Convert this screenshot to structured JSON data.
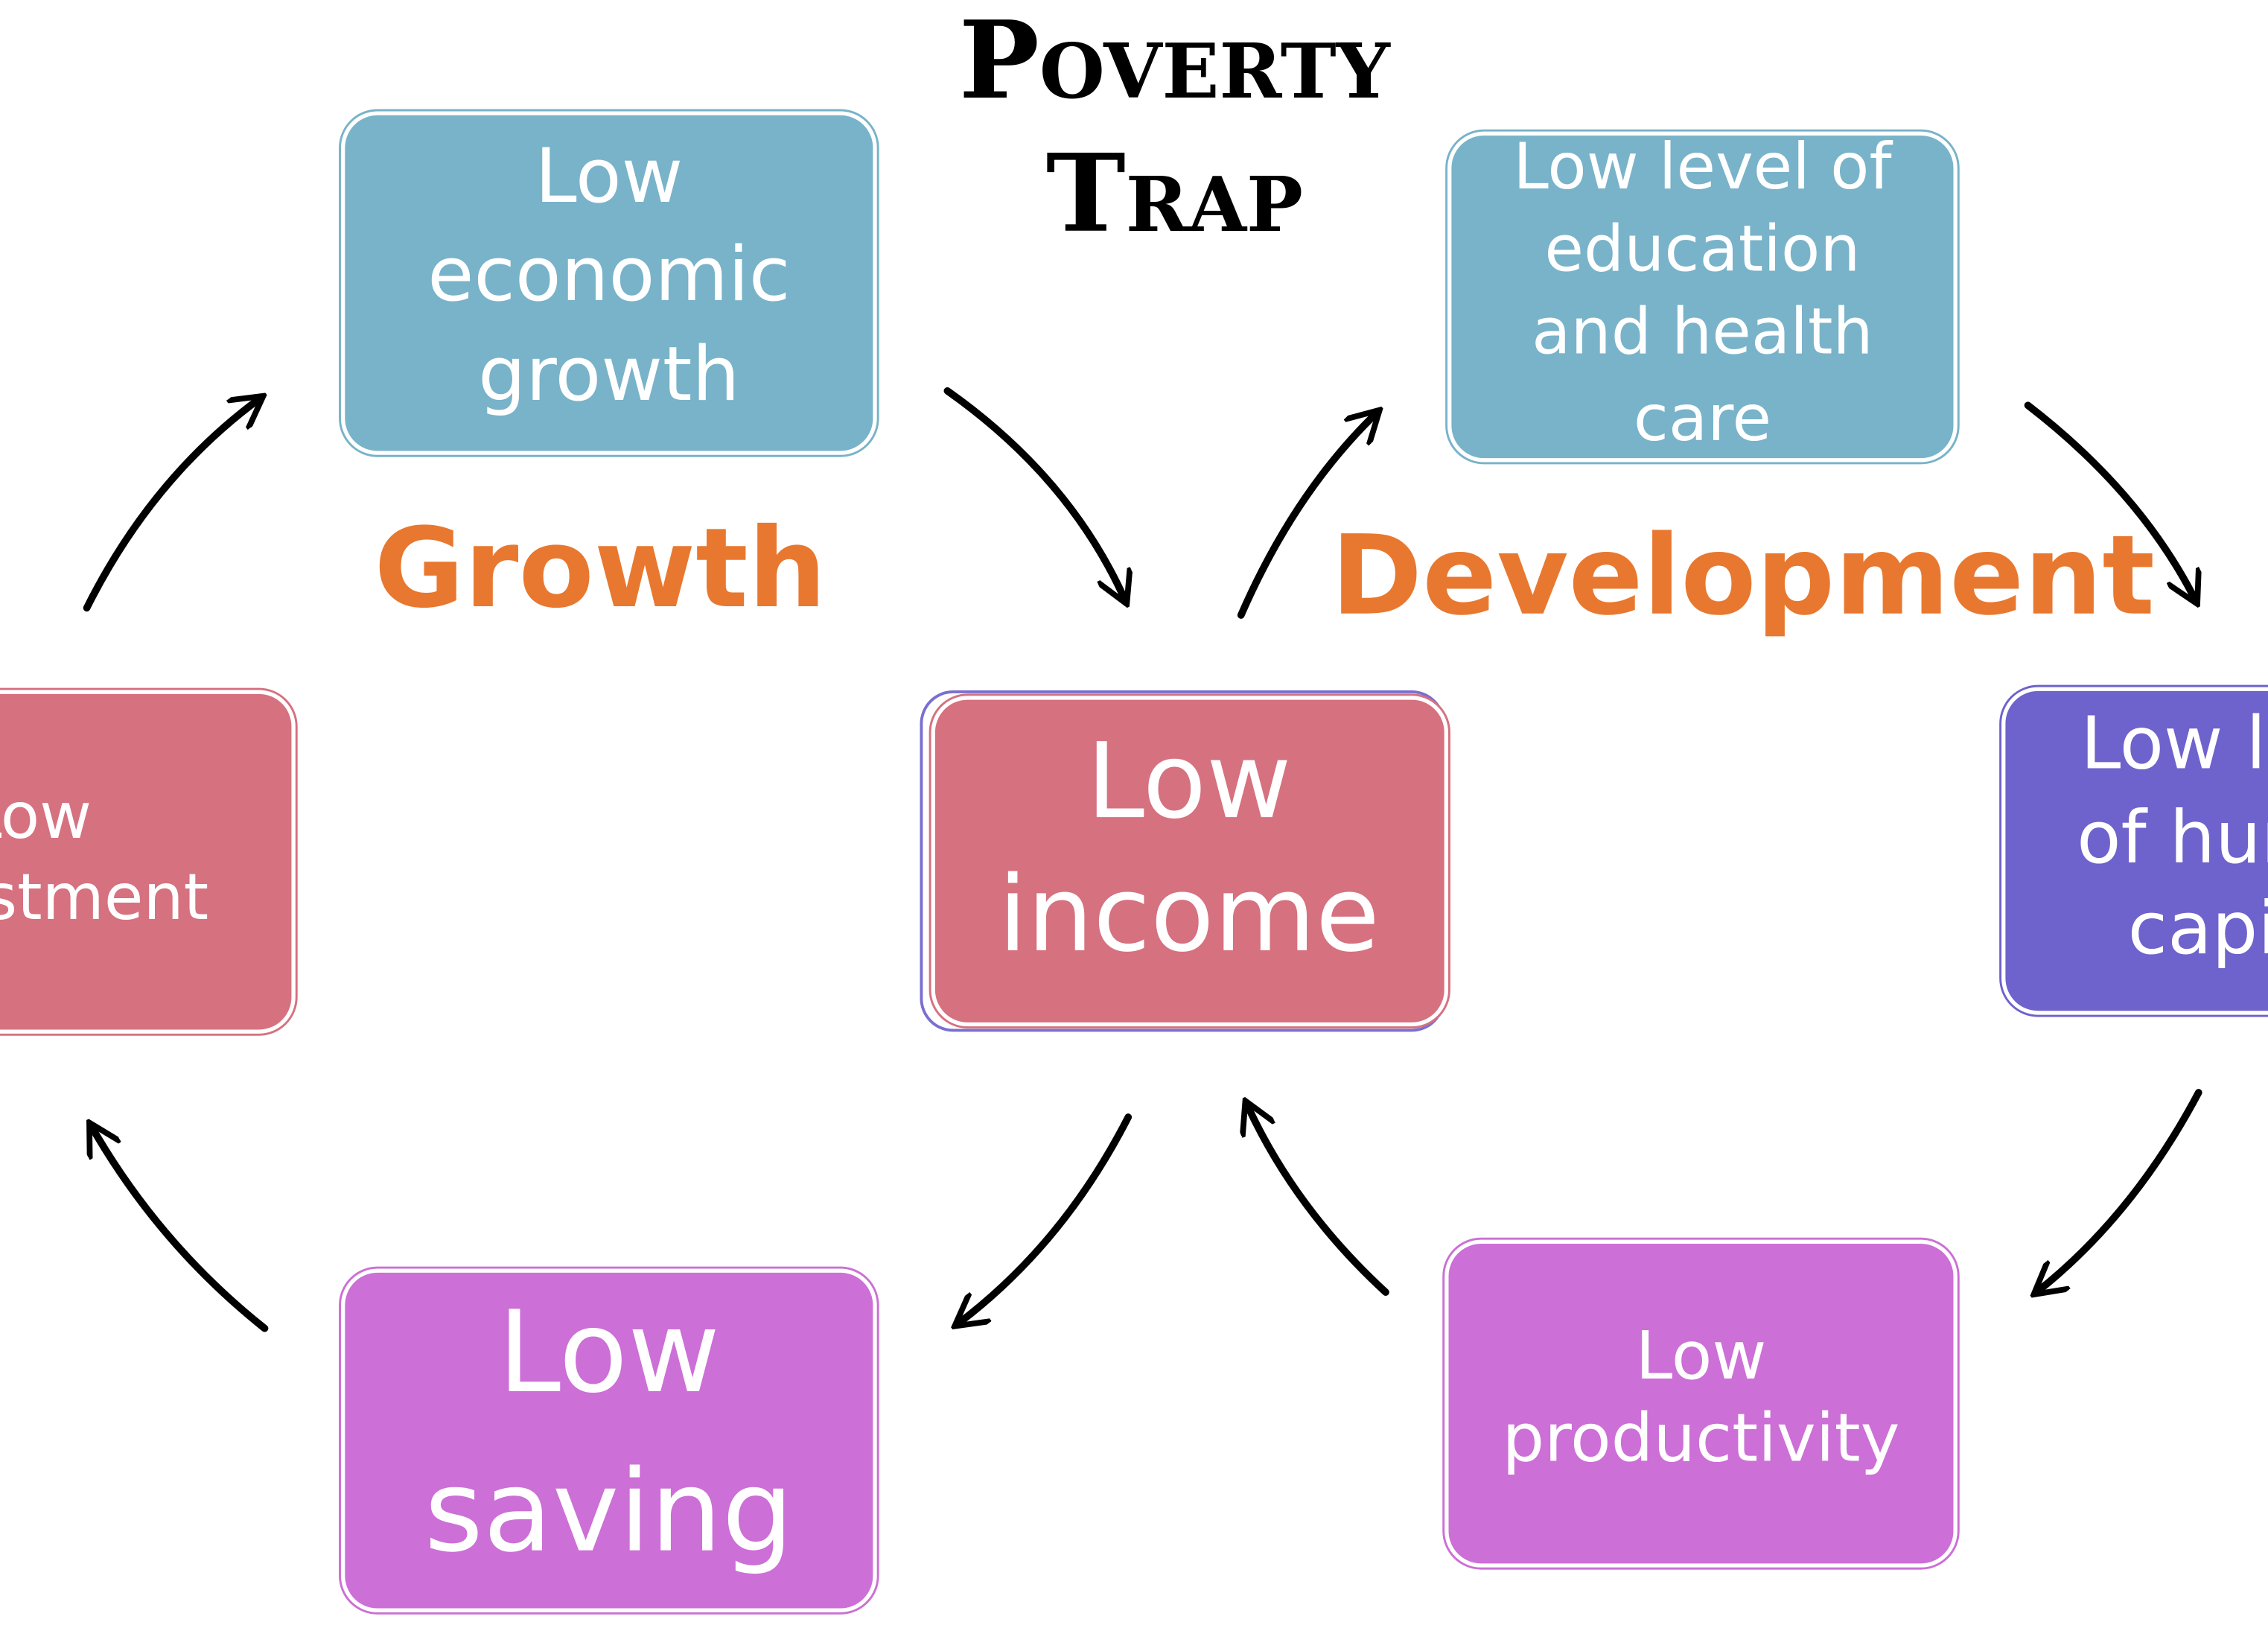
{
  "title": {
    "lines": [
      "Poverty",
      "Trap"
    ]
  },
  "labels": [
    "Growth",
    "Development"
  ],
  "nodes": [
    {
      "lines": [
        "Low",
        "economic",
        "growth"
      ]
    },
    {
      "lines": [
        "Low level of",
        "education",
        "and health",
        "care"
      ]
    },
    {
      "lines": [
        "Low",
        "investment"
      ]
    },
    {
      "lines": [
        "Low",
        "income"
      ]
    },
    {
      "lines": [
        "Low level",
        "of human",
        "capital"
      ]
    },
    {
      "lines": [
        "Low",
        "saving"
      ]
    },
    {
      "lines": [
        "Low",
        "productivity"
      ]
    }
  ]
}
